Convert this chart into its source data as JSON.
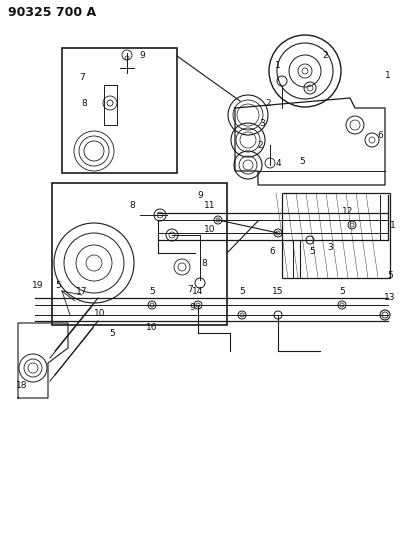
{
  "title": "90325 700 A",
  "bg_color": "#ffffff",
  "line_color": "#1a1a1a",
  "text_color": "#111111",
  "title_fontsize": 9,
  "label_fontsize": 6.5,
  "fig_width": 4.0,
  "fig_height": 5.33,
  "dpi": 100
}
